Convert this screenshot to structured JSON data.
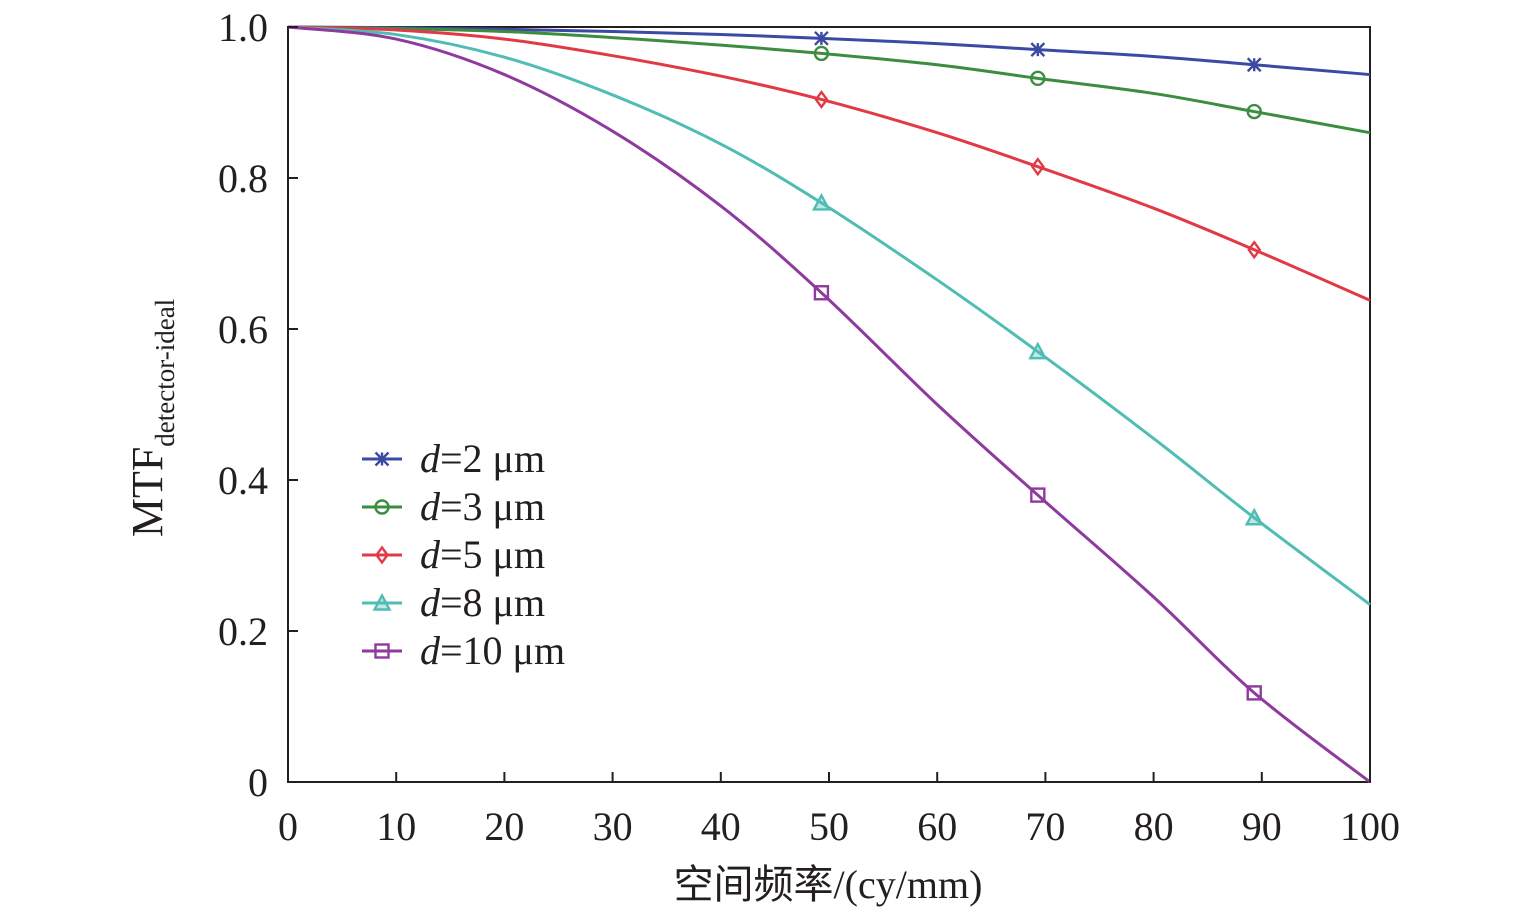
{
  "chart_data": {
    "type": "line",
    "title": "",
    "xlabel": "空间频率/(cy/mm)",
    "ylabel_main": "MTF",
    "ylabel_sub": "detector-ideal",
    "xlim": [
      0,
      100
    ],
    "ylim": [
      0,
      1.0
    ],
    "x_ticks": [
      "0",
      "10",
      "20",
      "30",
      "40",
      "50",
      "60",
      "70",
      "80",
      "90",
      "100"
    ],
    "y_ticks": [
      "0",
      "0.2",
      "0.4",
      "0.6",
      "0.8",
      "1.0"
    ],
    "grid": false,
    "legend_position": "lower-left",
    "marker_x": [
      49.3,
      69.3,
      89.3
    ],
    "series": [
      {
        "name": "d=2 μm",
        "legend_prefix": "d",
        "legend_rest": "=2 μm",
        "d_um": 2,
        "color": "#3b4aa3",
        "marker": "star",
        "x": [
          0,
          10,
          20,
          30,
          40,
          49.3,
          60,
          69.3,
          80,
          89.3,
          100
        ],
        "values": [
          1.0,
          0.999,
          0.997,
          0.994,
          0.99,
          0.985,
          0.978,
          0.97,
          0.961,
          0.95,
          0.937
        ]
      },
      {
        "name": "d=3 μm",
        "legend_prefix": "d",
        "legend_rest": "=3 μm",
        "d_um": 3,
        "color": "#3c8d3f",
        "marker": "circle",
        "x": [
          0,
          10,
          20,
          30,
          40,
          49.3,
          60,
          69.3,
          80,
          89.3,
          100
        ],
        "values": [
          1.0,
          0.998,
          0.994,
          0.986,
          0.976,
          0.965,
          0.95,
          0.932,
          0.912,
          0.888,
          0.86
        ]
      },
      {
        "name": "d=5 μm",
        "legend_prefix": "d",
        "legend_rest": "=5 μm",
        "d_um": 5,
        "color": "#e23a45",
        "marker": "diamond",
        "x": [
          0,
          10,
          20,
          30,
          40,
          49.3,
          60,
          69.3,
          80,
          89.3,
          100
        ],
        "values": [
          1.0,
          0.996,
          0.984,
          0.962,
          0.935,
          0.904,
          0.86,
          0.815,
          0.76,
          0.705,
          0.638
        ]
      },
      {
        "name": "d=8 μm",
        "legend_prefix": "d",
        "legend_rest": "=8 μm",
        "d_um": 8,
        "color": "#4fbdb4",
        "marker": "triangle",
        "x": [
          0,
          10,
          20,
          30,
          40,
          49.3,
          60,
          69.3,
          80,
          89.3,
          100
        ],
        "values": [
          1.0,
          0.99,
          0.96,
          0.91,
          0.845,
          0.767,
          0.665,
          0.57,
          0.455,
          0.35,
          0.235
        ]
      },
      {
        "name": "d=10 μm",
        "legend_prefix": "d",
        "legend_rest": "=10 μm",
        "d_um": 10,
        "color": "#8e3a9e",
        "marker": "square",
        "x": [
          0,
          10,
          20,
          30,
          40,
          49.3,
          60,
          69.3,
          80,
          89.3,
          100
        ],
        "values": [
          1.0,
          0.984,
          0.937,
          0.862,
          0.763,
          0.648,
          0.5,
          0.38,
          0.245,
          0.118,
          0.0
        ]
      }
    ]
  }
}
